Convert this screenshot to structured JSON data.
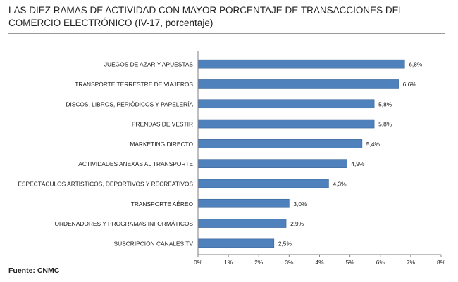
{
  "title": "LAS DIEZ RAMAS DE ACTIVIDAD CON MAYOR PORCENTAJE DE TRANSACCIONES DEL COMERCIO ELECTRÓNICO (IV-17, porcentaje)",
  "source": "Fuente: CNMC",
  "colors": {
    "bar": "#4f81bd",
    "bar_edge": "#3a6596",
    "axis": "#7f7f7f",
    "text": "#1a1a1a"
  },
  "chart_data": {
    "type": "bar",
    "orientation": "horizontal",
    "categories": [
      "JUEGOS DE AZAR Y APUESTAS",
      "TRANSPORTE TERRESTRE DE VIAJEROS",
      "DISCOS, LIBROS, PERIÓDICOS Y PAPELERÍA",
      "PRENDAS DE VESTIR",
      "MARKETING DIRECTO",
      "ACTIVIDADES ANEXAS AL TRANSPORTE",
      "ESPECTÁCULOS ARTÍSTICOS, DEPORTIVOS Y RECREATIVOS",
      "TRANSPORTE AÉREO",
      "ORDENADORES Y PROGRAMAS INFORMÁTICOS",
      "SUSCRIPCIÓN CANALES TV"
    ],
    "values": [
      6.8,
      6.6,
      5.8,
      5.8,
      5.4,
      4.9,
      4.3,
      3.0,
      2.9,
      2.5
    ],
    "data_labels": [
      "6,8%",
      "6,6%",
      "5,8%",
      "5,8%",
      "5,4%",
      "4,9%",
      "4,3%",
      "3,0%",
      "2,9%",
      "2,5%"
    ],
    "xlim": [
      0,
      8
    ],
    "x_ticks": [
      "0%",
      "1%",
      "2%",
      "3%",
      "4%",
      "5%",
      "6%",
      "7%",
      "8%"
    ],
    "grid": false,
    "legend": "none"
  }
}
